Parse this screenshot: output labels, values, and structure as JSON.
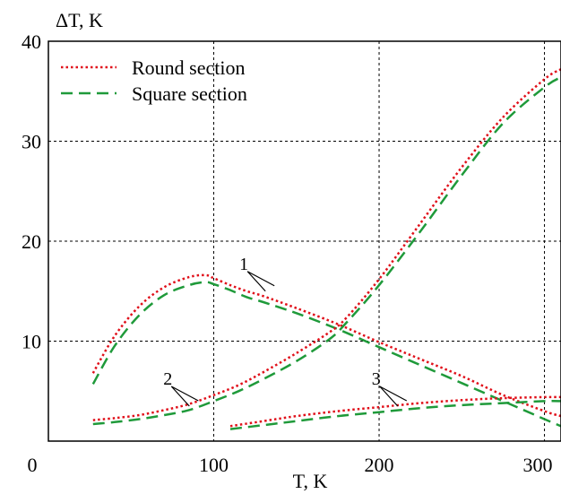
{
  "chart_data": {
    "type": "line",
    "xlabel": "T, K",
    "ylabel": "ΔT, K",
    "xlim": [
      0,
      310
    ],
    "ylim": [
      0,
      40
    ],
    "x_ticks": [
      0,
      100,
      200,
      300
    ],
    "y_ticks": [
      10,
      20,
      30,
      40
    ],
    "grid": {
      "x": [
        100,
        200,
        300
      ],
      "y": [
        10,
        20,
        30
      ]
    },
    "legend": {
      "position": "top-left",
      "entries": [
        "Round section",
        "Square section"
      ]
    },
    "colors": {
      "round": "#e0101a",
      "square": "#1f9a3a"
    },
    "series": [
      {
        "name": "Round section",
        "curve": "1",
        "style": "dotted",
        "x": [
          27,
          40,
          55,
          70,
          85,
          95,
          100,
          110,
          120,
          130,
          150,
          175,
          200,
          225,
          250,
          275,
          300,
          310
        ],
        "y": [
          6.8,
          10.5,
          13.5,
          15.4,
          16.4,
          16.6,
          16.3,
          15.6,
          15.0,
          14.5,
          13.3,
          11.7,
          9.9,
          8.2,
          6.5,
          4.6,
          3.0,
          2.5
        ]
      },
      {
        "name": "Square section",
        "curve": "1",
        "style": "dashed",
        "x": [
          27,
          40,
          55,
          70,
          85,
          95,
          100,
          110,
          120,
          130,
          150,
          175,
          200,
          225,
          250,
          275,
          300,
          310
        ],
        "y": [
          5.7,
          9.5,
          12.6,
          14.6,
          15.6,
          15.9,
          15.7,
          15.1,
          14.4,
          13.9,
          12.8,
          11.2,
          9.4,
          7.6,
          5.8,
          4.0,
          2.2,
          1.5
        ]
      },
      {
        "name": "Round section",
        "curve": "2",
        "style": "dotted",
        "x": [
          27,
          40,
          55,
          70,
          85,
          100,
          115,
          130,
          150,
          170,
          180,
          200,
          225,
          250,
          275,
          300,
          310
        ],
        "y": [
          2.1,
          2.3,
          2.6,
          3.1,
          3.7,
          4.6,
          5.6,
          6.9,
          8.8,
          10.9,
          12.3,
          16.2,
          21.8,
          27.4,
          32.4,
          36.2,
          37.2
        ]
      },
      {
        "name": "Square section",
        "curve": "2",
        "style": "dashed",
        "x": [
          27,
          40,
          55,
          70,
          85,
          100,
          115,
          130,
          150,
          170,
          180,
          200,
          225,
          250,
          275,
          300,
          310
        ],
        "y": [
          1.7,
          1.9,
          2.2,
          2.6,
          3.1,
          4.0,
          5.0,
          6.2,
          8.0,
          10.2,
          11.8,
          15.6,
          21.0,
          26.6,
          31.8,
          35.4,
          36.4
        ]
      },
      {
        "name": "Round section",
        "curve": "3",
        "style": "dotted",
        "x": [
          110,
          130,
          150,
          175,
          200,
          225,
          250,
          275,
          300,
          310
        ],
        "y": [
          1.5,
          2.0,
          2.5,
          3.0,
          3.4,
          3.8,
          4.1,
          4.3,
          4.4,
          4.4
        ]
      },
      {
        "name": "Square section",
        "curve": "3",
        "style": "dashed",
        "x": [
          110,
          130,
          150,
          175,
          200,
          225,
          250,
          275,
          300,
          310
        ],
        "y": [
          1.2,
          1.6,
          2.0,
          2.5,
          2.9,
          3.3,
          3.6,
          3.8,
          4.0,
          4.0
        ]
      }
    ],
    "annotations": [
      {
        "text": "1",
        "anchor_x": 128,
        "anchor_y": 15.0
      },
      {
        "text": "2",
        "anchor_x": 82,
        "anchor_y": 3.5
      },
      {
        "text": "3",
        "anchor_x": 208,
        "anchor_y": 3.5
      }
    ]
  }
}
